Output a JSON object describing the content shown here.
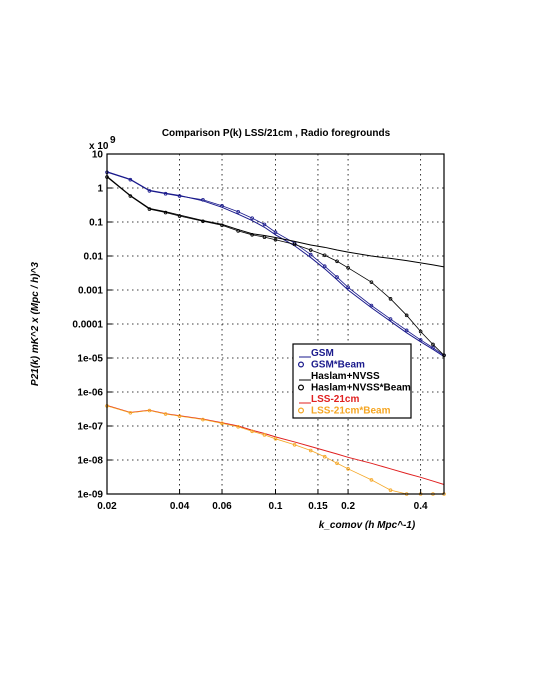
{
  "chart_data": {
    "type": "line",
    "title": "Comparison P(k) LSS/21cm , Radio foregrounds",
    "xlabel": "k_comov  (h Mpc^-1)",
    "ylabel": "P21(k) mK^2 x (Mpc / h)^3",
    "y_multiplier_label": "x 10",
    "y_multiplier_exponent": "9",
    "x_scale": "log",
    "y_scale": "log",
    "xlim": [
      0.02,
      0.5
    ],
    "ylim": [
      1e-09,
      10
    ],
    "grid": true,
    "grid_style": "dotted",
    "legend_position": "center-right",
    "x_ticks": [
      {
        "v": 0.02,
        "label": "0.02"
      },
      {
        "v": 0.04,
        "label": "0.04"
      },
      {
        "v": 0.06,
        "label": "0.06"
      },
      {
        "v": 0.1,
        "label": "0.1"
      },
      {
        "v": 0.15,
        "label": "0.15"
      },
      {
        "v": 0.2,
        "label": "0.2"
      },
      {
        "v": 0.4,
        "label": "0.4"
      }
    ],
    "y_ticks": [
      {
        "v": 10,
        "label": "10"
      },
      {
        "v": 1,
        "label": "1"
      },
      {
        "v": 0.1,
        "label": "0.1"
      },
      {
        "v": 0.01,
        "label": "0.01"
      },
      {
        "v": 0.001,
        "label": "0.001"
      },
      {
        "v": 0.0001,
        "label": "0.0001"
      },
      {
        "v": 1e-05,
        "label": "1e-05"
      },
      {
        "v": 1e-06,
        "label": "1e-06"
      },
      {
        "v": 1e-07,
        "label": "1e-07"
      },
      {
        "v": 1e-08,
        "label": "1e-08"
      },
      {
        "v": 1e-09,
        "label": "1e-09"
      }
    ],
    "series": [
      {
        "name": "GSM",
        "style": "line",
        "color": "#1a1a8c",
        "x": [
          0.02,
          0.025,
          0.03,
          0.035,
          0.04,
          0.05,
          0.06,
          0.07,
          0.08,
          0.09,
          0.1,
          0.12,
          0.14,
          0.16,
          0.18,
          0.2,
          0.25,
          0.3,
          0.35,
          0.4,
          0.45,
          0.5
        ],
        "y": [
          3.0,
          1.8,
          0.85,
          0.7,
          0.6,
          0.42,
          0.27,
          0.17,
          0.11,
          0.07,
          0.042,
          0.02,
          0.009,
          0.0042,
          0.002,
          0.001,
          0.0003,
          0.00012,
          5.5e-05,
          3e-05,
          1.8e-05,
          1.1e-05
        ]
      },
      {
        "name": "GSM*Beam",
        "style": "markers",
        "color": "#1a1a8c",
        "x": [
          0.02,
          0.025,
          0.03,
          0.035,
          0.04,
          0.05,
          0.06,
          0.07,
          0.08,
          0.09,
          0.1,
          0.12,
          0.14,
          0.16,
          0.18,
          0.2,
          0.25,
          0.3,
          0.35,
          0.4,
          0.45,
          0.5
        ],
        "y": [
          2.9,
          1.75,
          0.82,
          0.68,
          0.58,
          0.45,
          0.3,
          0.2,
          0.13,
          0.085,
          0.05,
          0.024,
          0.011,
          0.005,
          0.0024,
          0.0012,
          0.00035,
          0.00014,
          6.5e-05,
          3.4e-05,
          2e-05,
          1.2e-05
        ]
      },
      {
        "name": "Haslam+NVSS",
        "style": "line",
        "color": "#000000",
        "x": [
          0.02,
          0.025,
          0.03,
          0.035,
          0.04,
          0.05,
          0.06,
          0.07,
          0.08,
          0.09,
          0.1,
          0.12,
          0.14,
          0.16,
          0.18,
          0.2,
          0.25,
          0.3,
          0.35,
          0.4,
          0.45,
          0.5
        ],
        "y": [
          2.2,
          0.6,
          0.25,
          0.2,
          0.16,
          0.11,
          0.085,
          0.06,
          0.045,
          0.04,
          0.035,
          0.027,
          0.021,
          0.018,
          0.015,
          0.013,
          0.01,
          0.0085,
          0.0073,
          0.0063,
          0.0055,
          0.0048
        ]
      },
      {
        "name": "Haslam+NVSS*Beam",
        "style": "markers",
        "color": "#000000",
        "x": [
          0.02,
          0.025,
          0.03,
          0.035,
          0.04,
          0.05,
          0.06,
          0.07,
          0.08,
          0.09,
          0.1,
          0.12,
          0.14,
          0.16,
          0.18,
          0.2,
          0.25,
          0.3,
          0.35,
          0.4,
          0.45,
          0.5
        ],
        "y": [
          2.1,
          0.58,
          0.24,
          0.19,
          0.15,
          0.105,
          0.08,
          0.055,
          0.042,
          0.036,
          0.03,
          0.022,
          0.015,
          0.0105,
          0.007,
          0.0045,
          0.0017,
          0.00055,
          0.00018,
          6e-05,
          2.5e-05,
          1.2e-05
        ]
      },
      {
        "name": "LSS-21cm",
        "style": "line",
        "color": "#e02020",
        "x": [
          0.02,
          0.025,
          0.03,
          0.035,
          0.04,
          0.05,
          0.06,
          0.07,
          0.08,
          0.09,
          0.1,
          0.12,
          0.14,
          0.16,
          0.18,
          0.2,
          0.25,
          0.3,
          0.35,
          0.4,
          0.45,
          0.5
        ],
        "y": [
          4e-07,
          2.5e-07,
          2.9e-07,
          2.3e-07,
          2e-07,
          1.6e-07,
          1.25e-07,
          1e-07,
          7.5e-08,
          6e-08,
          4.8e-08,
          3.4e-08,
          2.5e-08,
          1.9e-08,
          1.5e-08,
          1.2e-08,
          8e-09,
          5.5e-09,
          4e-09,
          3.1e-09,
          2.4e-09,
          1.9e-09
        ]
      },
      {
        "name": "LSS-21cm*Beam",
        "style": "markers",
        "color": "#f5a623",
        "x": [
          0.02,
          0.025,
          0.03,
          0.035,
          0.04,
          0.05,
          0.06,
          0.07,
          0.08,
          0.09,
          0.1,
          0.12,
          0.14,
          0.16,
          0.18,
          0.2,
          0.25,
          0.3,
          0.35,
          0.4,
          0.45,
          0.5
        ],
        "y": [
          3.9e-07,
          2.45e-07,
          2.85e-07,
          2.25e-07,
          1.95e-07,
          1.55e-07,
          1.2e-07,
          9.5e-08,
          7e-08,
          5.5e-08,
          4.2e-08,
          2.8e-08,
          1.9e-08,
          1.25e-08,
          8e-09,
          5.5e-09,
          2.6e-09,
          1.3e-09,
          1e-09,
          1e-09,
          1e-09,
          1e-09
        ]
      }
    ],
    "legend": [
      {
        "label": "GSM",
        "marker": "__",
        "color": "#1a1a8c"
      },
      {
        "label": "GSM*Beam",
        "marker": "o",
        "color": "#1a1a8c"
      },
      {
        "label": "Haslam+NVSS",
        "marker": "__",
        "color": "#000000"
      },
      {
        "label": "Haslam+NVSS*Beam",
        "marker": "o",
        "color": "#000000"
      },
      {
        "label": "LSS-21cm",
        "marker": "__",
        "color": "#e02020"
      },
      {
        "label": "LSS-21cm*Beam",
        "marker": "o",
        "color": "#f5a623"
      }
    ]
  }
}
